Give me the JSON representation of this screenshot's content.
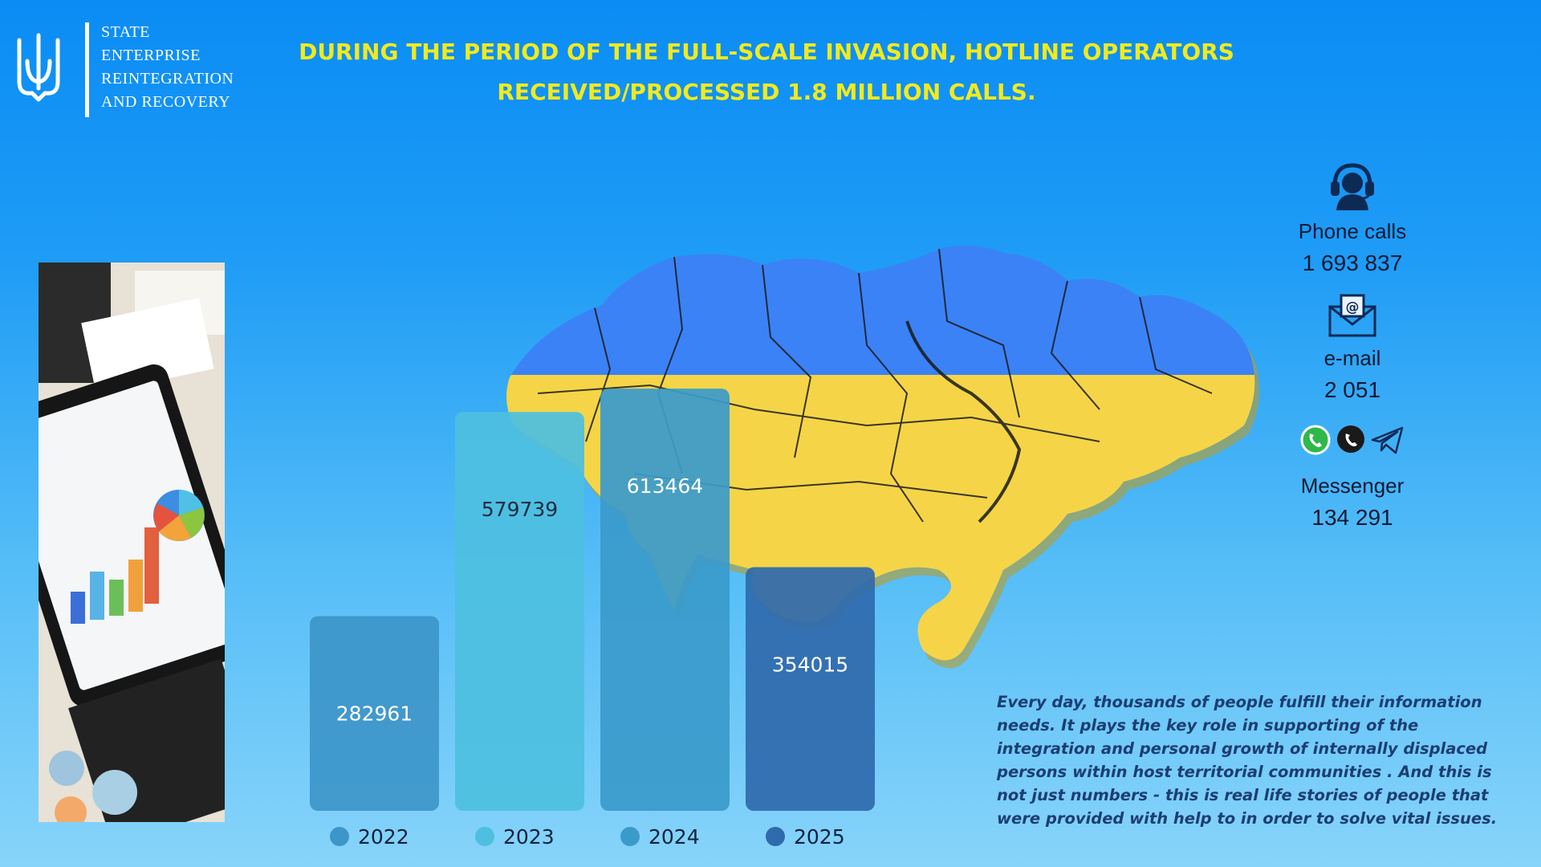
{
  "org": {
    "lines": [
      "STATE",
      "ENTERPRISE",
      "REINTEGRATION",
      "AND RECOVERY"
    ]
  },
  "title": {
    "line1": "DURING THE PERIOD OF THE FULL-SCALE INVASION, HOTLINE OPERATORS",
    "line2": "RECEIVED/PROCESSED 1.8 MILLION CALLS."
  },
  "contacts": {
    "phone": {
      "label": "Phone calls",
      "value": "1 693 837",
      "icon": "headset-operator-icon"
    },
    "email": {
      "label": "e-mail",
      "value": "2 051",
      "icon": "envelope-at-icon"
    },
    "messenger": {
      "label": "Messenger",
      "value": "134 291",
      "icons": [
        "whatsapp-icon",
        "viber-icon",
        "telegram-icon"
      ]
    }
  },
  "story": "Every day, thousands of people  fulfill   their information needs. It plays the key role in supporting of the integration and  personal growth of internally displaced persons within host territorial communities . And this is not just numbers  - this is real life stories of people that were provided with help to in order to solve vital issues.",
  "chart_data": {
    "type": "bar",
    "categories": [
      "2022",
      "2023",
      "2024",
      "2025"
    ],
    "values": [
      282961,
      579739,
      613464,
      354015
    ],
    "value_labels": [
      "282961",
      "579739",
      "613464",
      "354015"
    ],
    "colors": [
      "#3d96c9",
      "#4ebfe0",
      "#3a9bcb",
      "#2f6aad"
    ],
    "ylim": [
      0,
      700000
    ],
    "legend": "bottom",
    "grid": false
  },
  "colors": {
    "title": "#f1ea1e",
    "flag_blue": "#3b82f6",
    "flag_yellow": "#f5d547"
  }
}
